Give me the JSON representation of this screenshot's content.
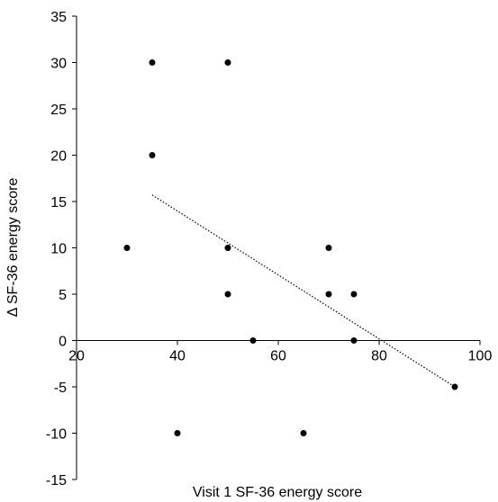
{
  "chart_data": {
    "type": "scatter",
    "title": "",
    "xlabel": "Visit 1 SF-36 energy score",
    "ylabel": "Δ SF-36 energy score",
    "xlim": [
      20,
      100
    ],
    "ylim": [
      -15,
      35
    ],
    "x_ticks": [
      20,
      40,
      60,
      80,
      100
    ],
    "y_ticks": [
      35,
      30,
      25,
      20,
      15,
      10,
      5,
      0,
      -5,
      -10,
      -15
    ],
    "x_tick_labels": [
      "20",
      "40",
      "60",
      "80",
      "100"
    ],
    "y_tick_labels": [
      "35",
      "30",
      "25",
      "20",
      "15",
      "10",
      "5",
      "0",
      "-5",
      "-10",
      "-15"
    ],
    "x_axis_crosses_at_y": 0,
    "grid": false,
    "legend": "none",
    "marker_color": "#000000",
    "series": [
      {
        "points": [
          {
            "x": 30,
            "y": 10
          },
          {
            "x": 35,
            "y": 30
          },
          {
            "x": 35,
            "y": 20
          },
          {
            "x": 40,
            "y": -10
          },
          {
            "x": 50,
            "y": 30
          },
          {
            "x": 50,
            "y": 10
          },
          {
            "x": 50,
            "y": 5
          },
          {
            "x": 55,
            "y": 0
          },
          {
            "x": 65,
            "y": -10
          },
          {
            "x": 70,
            "y": 10
          },
          {
            "x": 70,
            "y": 5
          },
          {
            "x": 75,
            "y": 5
          },
          {
            "x": 75,
            "y": 0
          },
          {
            "x": 95,
            "y": -5
          }
        ]
      }
    ],
    "trendline": {
      "style": "dotted",
      "color": "#000000",
      "start": {
        "x": 35,
        "y": 15.7
      },
      "end": {
        "x": 95,
        "y": -5
      }
    }
  }
}
